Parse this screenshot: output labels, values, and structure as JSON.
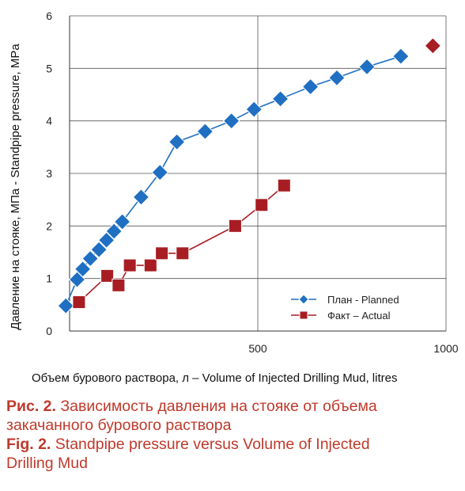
{
  "chart_data": {
    "type": "scatter",
    "xlabel": "Объем бурового раствора, л – Volume of Injected Drilling Mud, litres",
    "ylabel": "Давление на стояке, МПа - Standpipe pressure, MPa",
    "xlim": [
      0,
      1000
    ],
    "ylim": [
      0,
      6
    ],
    "x_ticks": [
      "500",
      "1000"
    ],
    "y_ticks": [
      "0",
      "1",
      "2",
      "3",
      "4",
      "5",
      "6"
    ],
    "grid": true,
    "legend_position": "bottom-right",
    "series": [
      {
        "name": "План -  Planned",
        "marker": "diamond",
        "color": "#1f6fc2",
        "x": [
          -10,
          20,
          35,
          55,
          78,
          98,
          118,
          140,
          190,
          240,
          285,
          360,
          430,
          490,
          560,
          640,
          710,
          790,
          880
        ],
        "y": [
          0.48,
          0.98,
          1.18,
          1.38,
          1.55,
          1.73,
          1.9,
          2.08,
          2.55,
          3.02,
          3.6,
          3.8,
          4.0,
          4.22,
          4.42,
          4.65,
          4.82,
          5.03,
          5.23
        ]
      },
      {
        "name": "Факт – Actual",
        "marker": "square",
        "color": "#a71d23",
        "x": [
          25,
          100,
          130,
          160,
          215,
          245,
          300,
          440,
          510,
          570
        ],
        "y": [
          0.55,
          1.05,
          0.87,
          1.25,
          1.25,
          1.48,
          1.48,
          2.0,
          2.4,
          2.77
        ]
      }
    ],
    "highlight_points": [
      {
        "x": 965,
        "y": 5.43,
        "marker": "diamond",
        "color": "#a71d23"
      }
    ]
  },
  "caption": {
    "ru_label": "Рис. 2.",
    "ru_line1": "Зависимость давления на стояке от объема",
    "ru_line2": "закачанного бурового раствора",
    "en_label": "Fig. 2.",
    "en_line1": "Standpipe pressure versus Volume of Injected",
    "en_line2": "Drilling Mud"
  }
}
